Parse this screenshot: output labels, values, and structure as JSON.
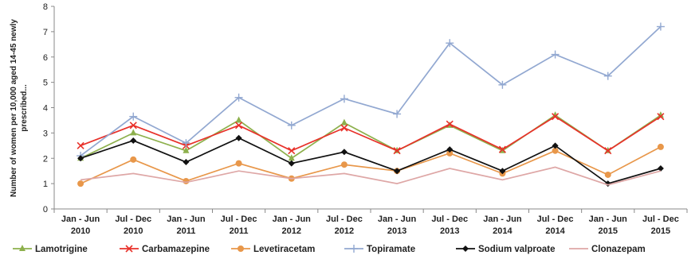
{
  "chart_data": {
    "type": "line",
    "ylabel_line1": "Number of women per 10,000 aged 14-45 newly",
    "ylabel_line2": "prescribed...",
    "ylim": [
      0,
      8
    ],
    "yticks": [
      "0",
      "1",
      "2",
      "3",
      "4",
      "5",
      "6",
      "7",
      "8"
    ],
    "categories": [
      [
        "Jan - Jun",
        "2010"
      ],
      [
        "Jul - Dec",
        "2010"
      ],
      [
        "Jan - Jun",
        "2011"
      ],
      [
        "Jul - Dec",
        "2011"
      ],
      [
        "Jan - Jun",
        "2012"
      ],
      [
        "Jul - Dec",
        "2012"
      ],
      [
        "Jan - Jun",
        "2013"
      ],
      [
        "Jul - Dec",
        "2013"
      ],
      [
        "Jan - Jun",
        "2014"
      ],
      [
        "Jul - Dec",
        "2014"
      ],
      [
        "Jan - Jun",
        "2015"
      ],
      [
        "Jul - Dec",
        "2015"
      ]
    ],
    "grid": false,
    "legend_position": "bottom",
    "series": [
      {
        "name": "Lamotrigine",
        "color": "#8db04c",
        "marker": "triangle",
        "values": [
          2.0,
          3.0,
          2.3,
          3.5,
          2.0,
          3.4,
          2.3,
          3.3,
          2.3,
          3.7,
          2.3,
          3.7
        ]
      },
      {
        "name": "Carbamazepine",
        "color": "#e8312a",
        "marker": "x",
        "values": [
          2.5,
          3.3,
          2.5,
          3.3,
          2.3,
          3.2,
          2.3,
          3.35,
          2.35,
          3.65,
          2.3,
          3.65
        ]
      },
      {
        "name": "Levetiracetam",
        "color": "#e8974a",
        "marker": "circle",
        "values": [
          1.0,
          1.95,
          1.1,
          1.8,
          1.2,
          1.75,
          1.5,
          2.2,
          1.4,
          2.3,
          1.35,
          2.45
        ]
      },
      {
        "name": "Topiramate",
        "color": "#92a8d1",
        "marker": "plus",
        "values": [
          2.1,
          3.65,
          2.6,
          4.4,
          3.3,
          4.35,
          3.75,
          6.55,
          4.9,
          6.1,
          5.25,
          7.2
        ]
      },
      {
        "name": "Sodium valproate",
        "color": "#111111",
        "marker": "diamond",
        "values": [
          2.0,
          2.7,
          1.85,
          2.8,
          1.8,
          2.25,
          1.5,
          2.35,
          1.5,
          2.5,
          1.0,
          1.6
        ]
      },
      {
        "name": "Clonazepam",
        "color": "#dea7a6",
        "marker": "none",
        "values": [
          1.15,
          1.4,
          1.05,
          1.5,
          1.2,
          1.4,
          1.0,
          1.6,
          1.15,
          1.65,
          0.95,
          1.5
        ]
      }
    ]
  }
}
